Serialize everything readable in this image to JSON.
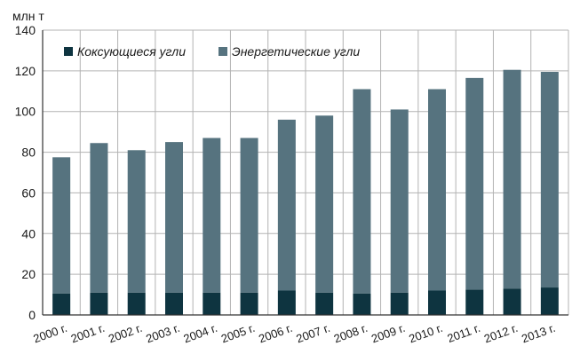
{
  "chart_data": {
    "type": "bar",
    "stacked": true,
    "unit_label": "млн т",
    "categories": [
      "2000 г.",
      "2001 г.",
      "2002 г.",
      "2003 г.",
      "2004 г.",
      "2005 г.",
      "2006 г.",
      "2007 г.",
      "2008 г.",
      "2009 г.",
      "2010 г.",
      "2011 г.",
      "2012 г.",
      "2013 г."
    ],
    "series": [
      {
        "name": "Коксующиеся угли",
        "color": "#0e3440",
        "values": [
          10.5,
          11,
          11,
          11,
          11,
          11,
          12,
          11,
          10.5,
          11,
          12,
          12.5,
          13,
          13.5
        ]
      },
      {
        "name": "Энергетические угли",
        "color": "#56737f",
        "values": [
          67,
          73.5,
          70,
          74,
          76,
          76,
          84,
          87,
          100.5,
          90,
          99,
          104,
          107.5,
          106
        ]
      }
    ],
    "ylim": [
      0,
      140
    ],
    "yticks": [
      0,
      20,
      40,
      60,
      80,
      100,
      120,
      140
    ],
    "grid": true,
    "legend_position": "top-left"
  }
}
